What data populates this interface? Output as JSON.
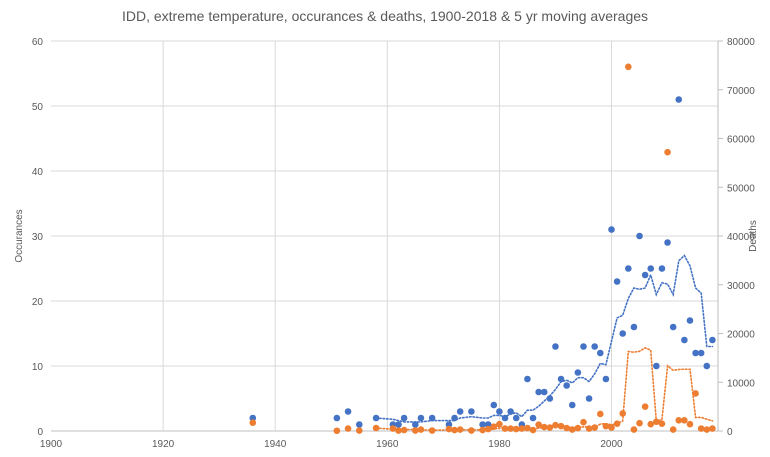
{
  "chart_data": {
    "type": "scatter",
    "title": "IDD, extreme temperature, occurances & deaths, 1900-2018 & 5 yr moving averages",
    "ylabel": "Occurances",
    "y2label": "Deaths",
    "xlim": [
      1900,
      2019
    ],
    "ylim": [
      0,
      60
    ],
    "y2lim": [
      0,
      80000
    ],
    "xticks": [
      1900,
      1920,
      1940,
      1960,
      1980,
      2000
    ],
    "yticks": [
      0,
      10,
      20,
      30,
      40,
      50,
      60
    ],
    "y2ticks": [
      0,
      10000,
      20000,
      30000,
      40000,
      50000,
      60000,
      70000,
      80000
    ],
    "grid": true,
    "colors": {
      "occurances": "#4472C4",
      "deaths": "#ED7D31"
    },
    "moving_average_window": 5,
    "series": [
      {
        "axis": "left",
        "color": "#4472C4",
        "x": [
          1936,
          1951,
          1953,
          1955,
          1958,
          1961,
          1962,
          1963,
          1965,
          1966,
          1968,
          1971,
          1972,
          1973,
          1975,
          1977,
          1978,
          1979,
          1980,
          1981,
          1982,
          1983,
          1984,
          1985,
          1986,
          1987,
          1988,
          1989,
          1990,
          1991,
          1992,
          1993,
          1994,
          1995,
          1996,
          1997,
          1998,
          1999,
          2000,
          2001,
          2002,
          2003,
          2004,
          2005,
          2006,
          2007,
          2008,
          2009,
          2010,
          2011,
          2012,
          2013,
          2014,
          2015,
          2016,
          2017,
          2018
        ],
        "y": [
          2,
          2,
          3,
          1,
          2,
          1,
          1,
          2,
          1,
          2,
          2,
          1,
          2,
          3,
          3,
          1,
          1,
          4,
          3,
          2,
          3,
          2,
          1,
          8,
          2,
          6,
          6,
          5,
          13,
          8,
          7,
          4,
          9,
          13,
          5,
          13,
          12,
          8,
          31,
          23,
          15,
          25,
          16,
          30,
          24,
          25,
          10,
          25,
          29,
          16,
          51,
          14,
          17,
          12,
          12,
          10,
          14
        ]
      },
      {
        "axis": "right",
        "color": "#ED7D31",
        "x": [
          1936,
          1951,
          1953,
          1955,
          1958,
          1961,
          1962,
          1963,
          1965,
          1966,
          1968,
          1971,
          1972,
          1973,
          1975,
          1977,
          1978,
          1979,
          1980,
          1981,
          1982,
          1983,
          1984,
          1985,
          1986,
          1987,
          1988,
          1989,
          1990,
          1991,
          1992,
          1993,
          1994,
          1995,
          1996,
          1997,
          1998,
          1999,
          2000,
          2001,
          2002,
          2003,
          2004,
          2005,
          2006,
          2007,
          2008,
          2009,
          2010,
          2011,
          2012,
          2013,
          2014,
          2015,
          2016,
          2017,
          2018
        ],
        "y": [
          1700,
          50,
          500,
          100,
          600,
          500,
          100,
          200,
          100,
          300,
          100,
          400,
          200,
          300,
          100,
          200,
          400,
          900,
          1400,
          500,
          500,
          400,
          500,
          600,
          200,
          1300,
          800,
          700,
          1200,
          1000,
          600,
          300,
          600,
          1800,
          500,
          700,
          3500,
          1000,
          700,
          1500,
          3600,
          74700,
          300,
          1600,
          5000,
          1400,
          1900,
          1500,
          57200,
          300,
          2200,
          2200,
          1400,
          7700,
          500,
          300,
          500
        ]
      }
    ]
  }
}
